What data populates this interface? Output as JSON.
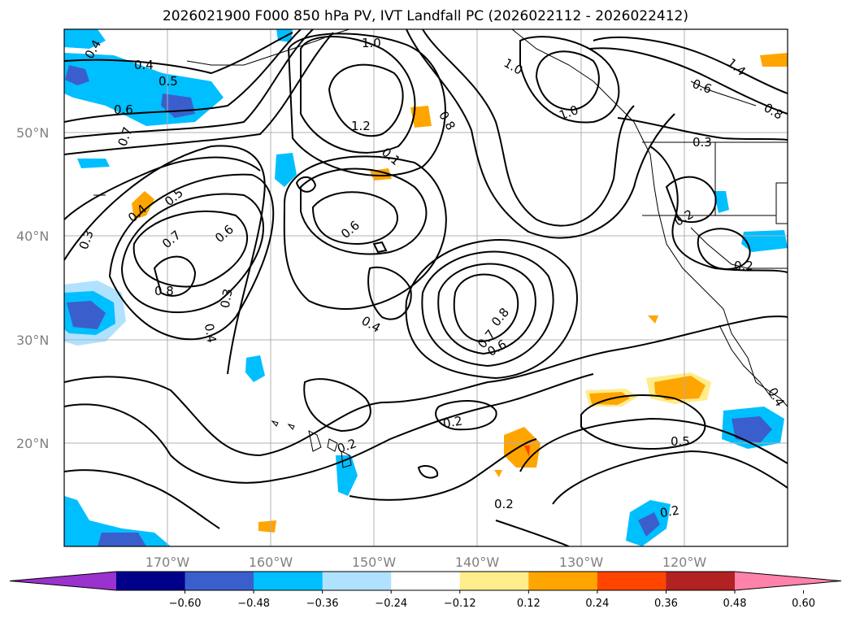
{
  "title": "2026021900 F000 850 hPa PV, IVT Landfall PC (2026022112 - 2026022412)",
  "map": {
    "lat_labels": [
      "50°N",
      "40°N",
      "30°N",
      "20°N"
    ],
    "lon_labels": [
      "170°W",
      "160°W",
      "150°W",
      "140°W",
      "130°W",
      "120°W"
    ],
    "contour_labels": [
      "0.4",
      "0.5",
      "0.6",
      "0.7",
      "1.0",
      "1.2",
      "0.8",
      "1.0",
      "1.0",
      "1.4",
      "0.6",
      "0.8",
      "0.3",
      "0.1",
      "0.5",
      "0.4",
      "0.7",
      "0.6",
      "0.6",
      "0.3",
      "0.8",
      "0.4",
      "0.4",
      "0.8",
      "0.7",
      "0.6",
      "0.2",
      "0.2",
      "0.2",
      "0.2",
      "0.2",
      "0.5",
      "0.2",
      "0.2",
      "0.4",
      "0.3"
    ]
  },
  "colorbar": {
    "colors": [
      "#9a32cd",
      "#00008b",
      "#3a5fcd",
      "#00bfff",
      "#b0e2ff",
      "#ffffff",
      "#ffec8b",
      "#ffa500",
      "#ff4500",
      "#b22222",
      "#ff82ab"
    ],
    "tick_labels": [
      "−0.60",
      "−0.48",
      "−0.36",
      "−0.24",
      "−0.12",
      "0.12",
      "0.24",
      "0.36",
      "0.48",
      "0.60"
    ]
  }
}
